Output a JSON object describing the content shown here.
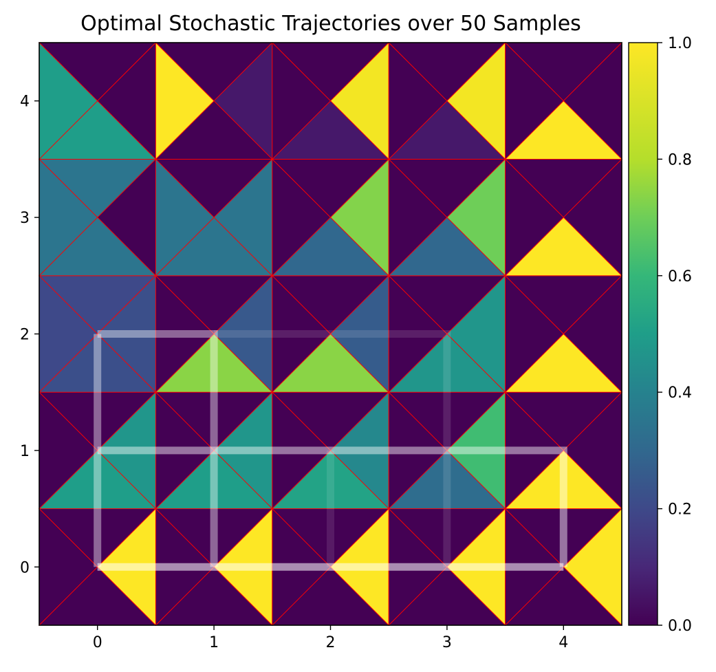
{
  "chart_data": {
    "type": "heatmap",
    "title": "Optimal Stochastic Trajectories over 50 Samples",
    "xlabel": "",
    "ylabel": "",
    "xlim": [
      -0.5,
      4.5
    ],
    "ylim": [
      -0.5,
      4.5
    ],
    "x_ticks": [
      "0",
      "1",
      "2",
      "3",
      "4"
    ],
    "y_ticks": [
      "0",
      "1",
      "2",
      "3",
      "4"
    ],
    "colormap": "viridis",
    "colorbar": {
      "range": [
        0.0,
        1.0
      ],
      "ticks": [
        "0.0",
        "0.2",
        "0.4",
        "0.6",
        "0.8",
        "1.0"
      ]
    },
    "grid_line_color": "#ff0000",
    "cell_triangles_order": [
      "up",
      "right",
      "down",
      "left"
    ],
    "cells": [
      {
        "x": 0,
        "y": 0,
        "values": [
          0.0,
          1.0,
          0.0,
          0.0
        ]
      },
      {
        "x": 1,
        "y": 0,
        "values": [
          0.0,
          1.0,
          0.0,
          0.0
        ]
      },
      {
        "x": 2,
        "y": 0,
        "values": [
          0.0,
          1.0,
          0.0,
          0.0
        ]
      },
      {
        "x": 3,
        "y": 0,
        "values": [
          0.0,
          1.0,
          0.0,
          0.0
        ]
      },
      {
        "x": 4,
        "y": 0,
        "values": [
          0.0,
          1.0,
          0.0,
          0.0
        ]
      },
      {
        "x": 0,
        "y": 1,
        "values": [
          0.0,
          0.47,
          0.5,
          0.0
        ]
      },
      {
        "x": 1,
        "y": 1,
        "values": [
          0.0,
          0.47,
          0.5,
          0.0
        ]
      },
      {
        "x": 2,
        "y": 1,
        "values": [
          0.0,
          0.42,
          0.52,
          0.0
        ]
      },
      {
        "x": 3,
        "y": 1,
        "values": [
          0.0,
          0.62,
          0.32,
          0.0
        ]
      },
      {
        "x": 4,
        "y": 1,
        "values": [
          0.0,
          0.0,
          1.0,
          0.0
        ]
      },
      {
        "x": 0,
        "y": 2,
        "values": [
          0.2,
          0.22,
          0.22,
          0.2
        ]
      },
      {
        "x": 1,
        "y": 2,
        "values": [
          0.0,
          0.25,
          0.74,
          0.0
        ]
      },
      {
        "x": 2,
        "y": 2,
        "values": [
          0.0,
          0.26,
          0.74,
          0.0
        ]
      },
      {
        "x": 3,
        "y": 2,
        "values": [
          0.0,
          0.47,
          0.47,
          0.0
        ]
      },
      {
        "x": 4,
        "y": 2,
        "values": [
          0.0,
          0.0,
          1.0,
          0.0
        ]
      },
      {
        "x": 0,
        "y": 3,
        "values": [
          0.35,
          0.0,
          0.35,
          0.35
        ]
      },
      {
        "x": 1,
        "y": 3,
        "values": [
          0.0,
          0.35,
          0.35,
          0.35
        ]
      },
      {
        "x": 2,
        "y": 3,
        "values": [
          0.0,
          0.73,
          0.3,
          0.0
        ]
      },
      {
        "x": 3,
        "y": 3,
        "values": [
          0.0,
          0.7,
          0.3,
          0.0
        ]
      },
      {
        "x": 4,
        "y": 3,
        "values": [
          0.0,
          0.0,
          1.0,
          0.0
        ]
      },
      {
        "x": 0,
        "y": 4,
        "values": [
          0.0,
          0.0,
          0.5,
          0.5
        ]
      },
      {
        "x": 1,
        "y": 4,
        "values": [
          0.0,
          0.06,
          0.0,
          1.0
        ]
      },
      {
        "x": 2,
        "y": 4,
        "values": [
          0.0,
          0.97,
          0.06,
          0.0
        ]
      },
      {
        "x": 3,
        "y": 4,
        "values": [
          0.0,
          0.97,
          0.06,
          0.0
        ]
      },
      {
        "x": 4,
        "y": 4,
        "values": [
          0.0,
          0.0,
          1.0,
          0.0
        ]
      }
    ],
    "trajectory_color": "#ffffff",
    "trajectories": [
      {
        "opacity": 0.55,
        "points": [
          [
            0,
            0
          ],
          [
            1,
            0
          ],
          [
            2,
            0
          ],
          [
            3,
            0
          ],
          [
            4,
            0
          ]
        ]
      },
      {
        "opacity": 0.4,
        "points": [
          [
            0,
            2
          ],
          [
            0,
            0
          ]
        ]
      },
      {
        "opacity": 0.4,
        "points": [
          [
            0,
            2
          ],
          [
            1,
            2
          ],
          [
            1,
            0
          ]
        ]
      },
      {
        "opacity": 0.45,
        "points": [
          [
            0,
            1
          ],
          [
            4,
            1
          ],
          [
            4,
            0
          ]
        ]
      },
      {
        "opacity": 0.12,
        "points": [
          [
            1,
            2
          ],
          [
            3,
            2
          ],
          [
            3,
            0
          ]
        ]
      },
      {
        "opacity": 0.1,
        "points": [
          [
            2,
            1
          ],
          [
            2,
            0
          ]
        ]
      }
    ]
  }
}
